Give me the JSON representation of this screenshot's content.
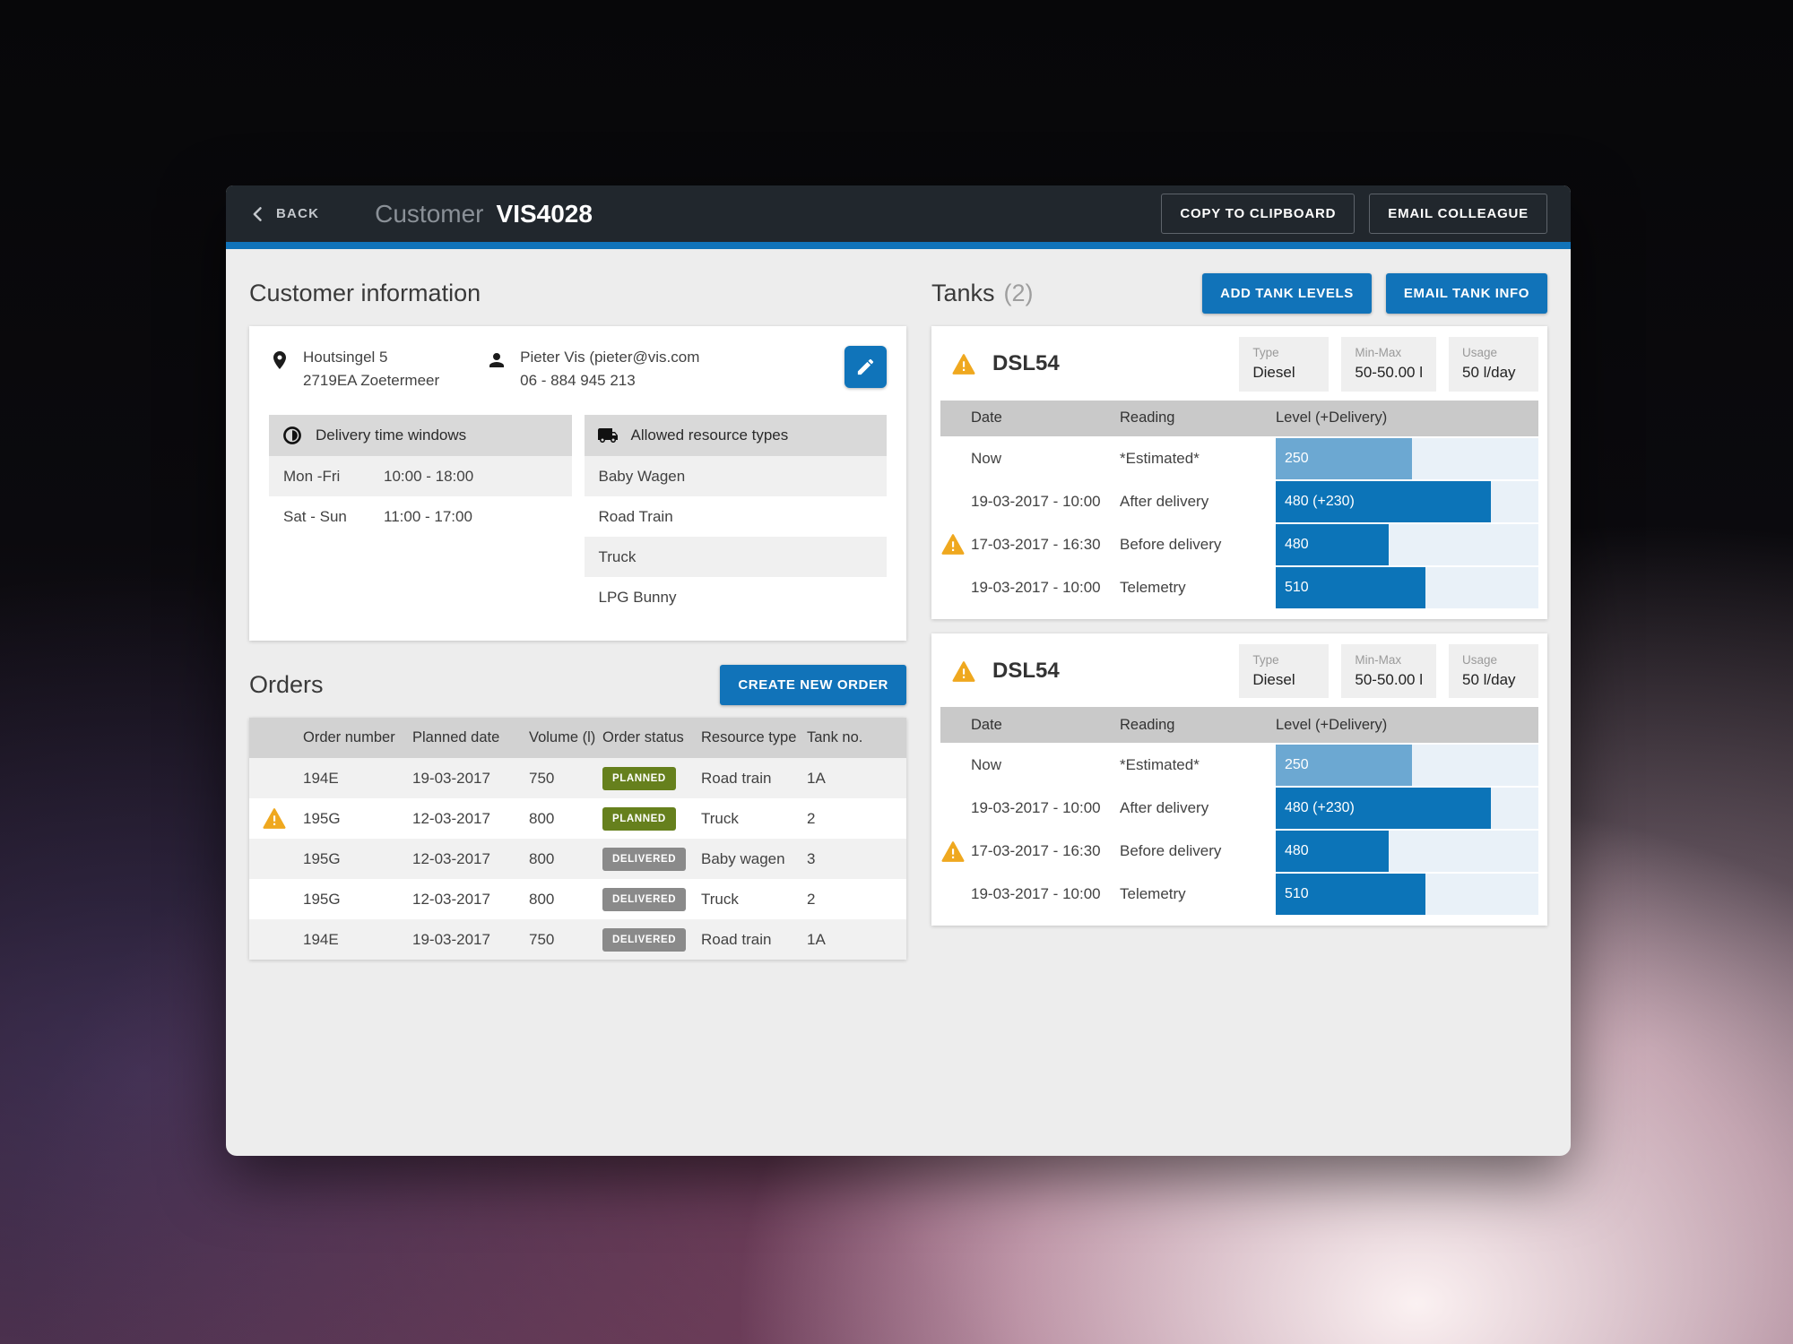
{
  "colors": {
    "accent_blue": "#1173b9",
    "bar_blue": "#0c74b8",
    "bar_estimated_blue": "#6ca8d2",
    "bar_track": "#e9f1f8",
    "badge_planned": "#66801d",
    "badge_delivered": "#8a8a8a",
    "warning_amber": "#efa81f",
    "topbar_bg": "#21272d"
  },
  "header": {
    "back_label": "BACK",
    "title_prefix": "Customer",
    "title_id": "VIS4028",
    "copy_button": "COPY TO CLIPBOARD",
    "email_button": "EMAIL COLLEAGUE"
  },
  "customer_info": {
    "section_title": "Customer information",
    "address_line1": "Houtsingel 5",
    "address_line2": "2719EA Zoetermeer",
    "contact_line1": "Pieter Vis (pieter@vis.com",
    "contact_line2": "06 - 884 945 213",
    "delivery_windows": {
      "title": "Delivery time windows",
      "rows": [
        {
          "days": "Mon -Fri",
          "hours": "10:00 - 18:00"
        },
        {
          "days": "Sat - Sun",
          "hours": "11:00 - 17:00"
        }
      ]
    },
    "resource_types": {
      "title": "Allowed resource types",
      "items": [
        {
          "label": "Baby Wagen"
        },
        {
          "label": "Road Train"
        },
        {
          "label": "Truck"
        },
        {
          "label": "LPG Bunny"
        }
      ]
    }
  },
  "orders": {
    "section_title": "Orders",
    "create_button": "CREATE NEW ORDER",
    "columns": {
      "order_number": "Order number",
      "planned_date": "Planned date",
      "volume": "Volume (l)",
      "order_status": "Order status",
      "resource_type": "Resource type",
      "tank_no": "Tank no."
    },
    "rows": [
      {
        "warning": false,
        "order_number": "194E",
        "planned_date": "19-03-2017",
        "volume": "750",
        "status": "PLANNED",
        "resource_type": "Road train",
        "tank_no": "1A"
      },
      {
        "warning": true,
        "order_number": "195G",
        "planned_date": "12-03-2017",
        "volume": "800",
        "status": "PLANNED",
        "resource_type": "Truck",
        "tank_no": "2"
      },
      {
        "warning": false,
        "order_number": "195G",
        "planned_date": "12-03-2017",
        "volume": "800",
        "status": "DELIVERED",
        "resource_type": "Baby wagen",
        "tank_no": "3"
      },
      {
        "warning": false,
        "order_number": "195G",
        "planned_date": "12-03-2017",
        "volume": "800",
        "status": "DELIVERED",
        "resource_type": "Truck",
        "tank_no": "2"
      },
      {
        "warning": false,
        "order_number": "194E",
        "planned_date": "19-03-2017",
        "volume": "750",
        "status": "DELIVERED",
        "resource_type": "Road train",
        "tank_no": "1A"
      }
    ]
  },
  "tanks": {
    "section_title": "Tanks",
    "count": "(2)",
    "add_button": "ADD TANK LEVELS",
    "email_button": "EMAIL TANK INFO",
    "columns": {
      "date": "Date",
      "reading": "Reading",
      "level": "Level (+Delivery)"
    },
    "cards": [
      {
        "name": "DSL54",
        "warning": true,
        "specs": [
          {
            "label": "Type",
            "value": "Diesel"
          },
          {
            "label": "Min-Max",
            "value": "50-50.00 l"
          },
          {
            "label": "Usage",
            "value": "50 l/day"
          }
        ],
        "rows": [
          {
            "warning": false,
            "date": "Now",
            "reading": "*Estimated*",
            "level_label": "250",
            "level_percent": 52,
            "estimated": true
          },
          {
            "warning": false,
            "date": "19-03-2017 - 10:00",
            "reading": "After delivery",
            "level_label": "480 (+230)",
            "level_percent": 82,
            "estimated": false
          },
          {
            "warning": true,
            "date": "17-03-2017 - 16:30",
            "reading": "Before delivery",
            "level_label": "480",
            "level_percent": 43,
            "estimated": false
          },
          {
            "warning": false,
            "date": "19-03-2017 - 10:00",
            "reading": "Telemetry",
            "level_label": "510",
            "level_percent": 57,
            "estimated": false
          }
        ]
      },
      {
        "name": "DSL54",
        "warning": true,
        "specs": [
          {
            "label": "Type",
            "value": "Diesel"
          },
          {
            "label": "Min-Max",
            "value": "50-50.00 l"
          },
          {
            "label": "Usage",
            "value": "50 l/day"
          }
        ],
        "rows": [
          {
            "warning": false,
            "date": "Now",
            "reading": "*Estimated*",
            "level_label": "250",
            "level_percent": 52,
            "estimated": true
          },
          {
            "warning": false,
            "date": "19-03-2017 - 10:00",
            "reading": "After delivery",
            "level_label": "480 (+230)",
            "level_percent": 82,
            "estimated": false
          },
          {
            "warning": true,
            "date": "17-03-2017 - 16:30",
            "reading": "Before delivery",
            "level_label": "480",
            "level_percent": 43,
            "estimated": false
          },
          {
            "warning": false,
            "date": "19-03-2017 - 10:00",
            "reading": "Telemetry",
            "level_label": "510",
            "level_percent": 57,
            "estimated": false
          }
        ]
      }
    ]
  }
}
